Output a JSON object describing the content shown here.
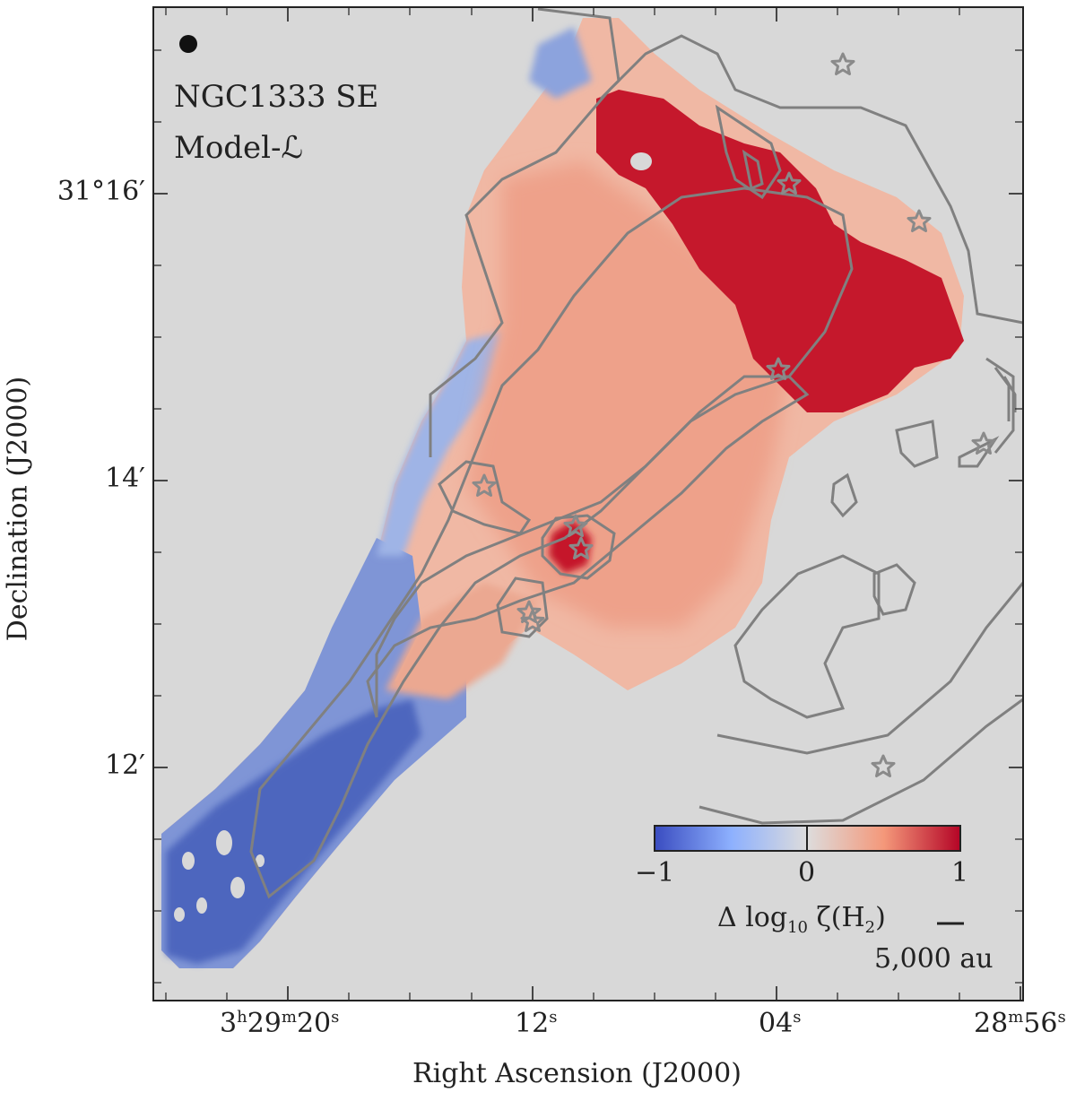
{
  "chart_data": {
    "type": "heatmap",
    "field_label": "NGC1333 SE",
    "model_label": "Model-ℒ",
    "xlabel": "Right Ascension (J2000)",
    "ylabel": "Declination (J2000)",
    "x_ticks": [
      {
        "label_main": "3",
        "sup1": "h",
        "mid": "29",
        "sup2": "m",
        "tail": "20",
        "sup3": "s"
      },
      {
        "label_main": "12",
        "sup1": "s"
      },
      {
        "label_main": "04",
        "sup1": "s"
      },
      {
        "label_main": "28",
        "sup1": "m",
        "mid": "56",
        "sup2": "s"
      }
    ],
    "y_ticks": [
      "31°16′",
      "14′",
      "12′"
    ],
    "colorbar": {
      "label_prefix": "Δ log",
      "label_sub": "10",
      "label_suffix": " ζ(H",
      "label_sub2": "2",
      "label_end": ")",
      "ticks": [
        "−1",
        "0",
        "1"
      ],
      "range": [
        -1,
        1
      ],
      "colormap": "coolwarm"
    },
    "scalebar_label": "5,000 au",
    "colors": {
      "background": "#d8d8d8",
      "contour": "#808080",
      "star": "#8a8a8a",
      "blue": "#3b55b0",
      "red": "#c0172a"
    },
    "protostars_count": 11
  }
}
